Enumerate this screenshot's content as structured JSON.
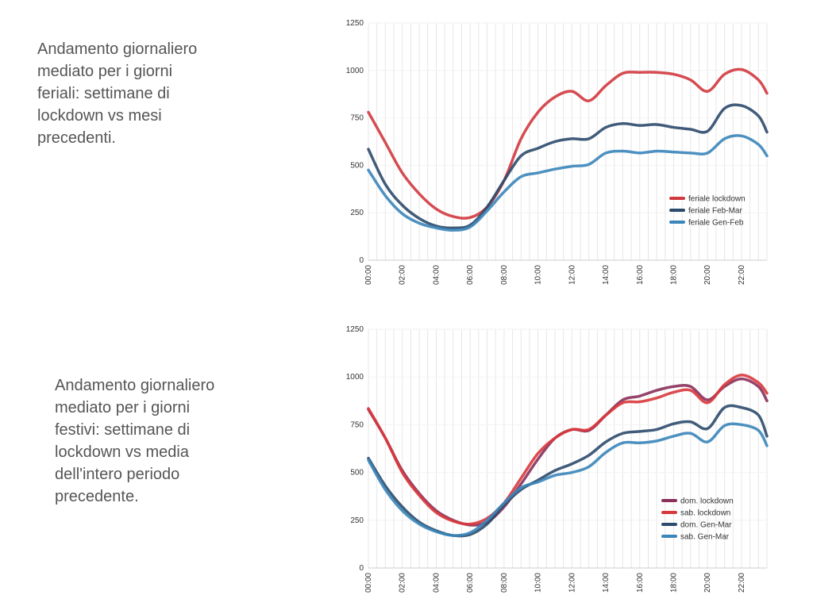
{
  "captions": [
    "Andamento giornaliero\nmediato per i giorni\nferiali: settimane di\nlockdown vs mesi\nprecedenti.",
    "Andamento giornaliero\nmediato per i giorni\nfestivi: settimane di\nlockdown vs media\ndell'intero periodo\nprecedente."
  ],
  "chart_data": [
    {
      "type": "line",
      "title": "",
      "xlabel": "",
      "ylabel": "",
      "ylim": [
        0,
        1250
      ],
      "yticks": [
        "0",
        "250",
        "500",
        "750",
        "1000",
        "1250"
      ],
      "xticks": [
        "00:00",
        "02:00",
        "04:00",
        "06:00",
        "08:00",
        "10:00",
        "12:00",
        "14:00",
        "16:00",
        "18:00",
        "20:00",
        "22:00"
      ],
      "grid": "vertical every 30 min",
      "legend": "bottom-right",
      "x": [
        0,
        1,
        2,
        3,
        4,
        5,
        6,
        7,
        8,
        9,
        10,
        11,
        12,
        13,
        14,
        15,
        16,
        17,
        18,
        19,
        20,
        21,
        22,
        23,
        23.5
      ],
      "series": [
        {
          "name": "feriale lockdown",
          "color": "#d0393e",
          "values": [
            780,
            620,
            460,
            350,
            270,
            230,
            225,
            280,
            420,
            640,
            780,
            860,
            890,
            840,
            920,
            985,
            990,
            990,
            980,
            950,
            890,
            980,
            1005,
            950,
            880
          ]
        },
        {
          "name": "feriale Feb-Mar",
          "color": "#2c4a6b",
          "values": [
            585,
            400,
            290,
            220,
            180,
            170,
            185,
            280,
            420,
            550,
            590,
            625,
            640,
            640,
            700,
            720,
            710,
            715,
            700,
            690,
            680,
            800,
            815,
            760,
            675
          ]
        },
        {
          "name": "feriale Gen-Feb",
          "color": "#3a85b9",
          "values": [
            475,
            340,
            245,
            195,
            170,
            158,
            175,
            260,
            360,
            440,
            460,
            480,
            495,
            505,
            565,
            575,
            565,
            575,
            570,
            565,
            565,
            640,
            655,
            610,
            550
          ]
        }
      ]
    },
    {
      "type": "line",
      "title": "",
      "xlabel": "",
      "ylabel": "",
      "ylim": [
        0,
        1250
      ],
      "yticks": [
        "0",
        "250",
        "500",
        "750",
        "1000",
        "1250"
      ],
      "xticks": [
        "00:00",
        "02:00",
        "04:00",
        "06:00",
        "08:00",
        "10:00",
        "12:00",
        "14:00",
        "16:00",
        "18:00",
        "20:00",
        "22:00"
      ],
      "grid": "vertical every 30 min",
      "legend": "bottom-right",
      "x": [
        0,
        1,
        2,
        3,
        4,
        5,
        6,
        7,
        8,
        9,
        10,
        11,
        12,
        13,
        14,
        15,
        16,
        17,
        18,
        19,
        20,
        21,
        22,
        23,
        23.5
      ],
      "series": [
        {
          "name": "dom. lockdown",
          "color": "#8a2f5a",
          "values": [
            830,
            680,
            510,
            390,
            300,
            250,
            225,
            240,
            320,
            440,
            570,
            680,
            725,
            720,
            800,
            880,
            900,
            930,
            950,
            950,
            880,
            950,
            990,
            950,
            875
          ]
        },
        {
          "name": "sab. lockdown",
          "color": "#d8383c",
          "values": [
            835,
            680,
            500,
            380,
            290,
            245,
            230,
            260,
            340,
            470,
            600,
            680,
            725,
            725,
            800,
            865,
            870,
            890,
            920,
            930,
            865,
            960,
            1010,
            970,
            915
          ]
        },
        {
          "name": "dom. Gen-Mar",
          "color": "#2c4a6b",
          "values": [
            575,
            430,
            320,
            240,
            195,
            170,
            175,
            230,
            330,
            410,
            460,
            510,
            545,
            590,
            660,
            705,
            715,
            725,
            755,
            765,
            730,
            840,
            840,
            800,
            690
          ]
        },
        {
          "name": "sab. Gen-Mar",
          "color": "#3a85b9",
          "values": [
            565,
            410,
            300,
            230,
            190,
            170,
            185,
            250,
            340,
            420,
            450,
            485,
            500,
            530,
            605,
            655,
            655,
            665,
            690,
            705,
            660,
            745,
            750,
            720,
            640
          ]
        }
      ]
    }
  ]
}
